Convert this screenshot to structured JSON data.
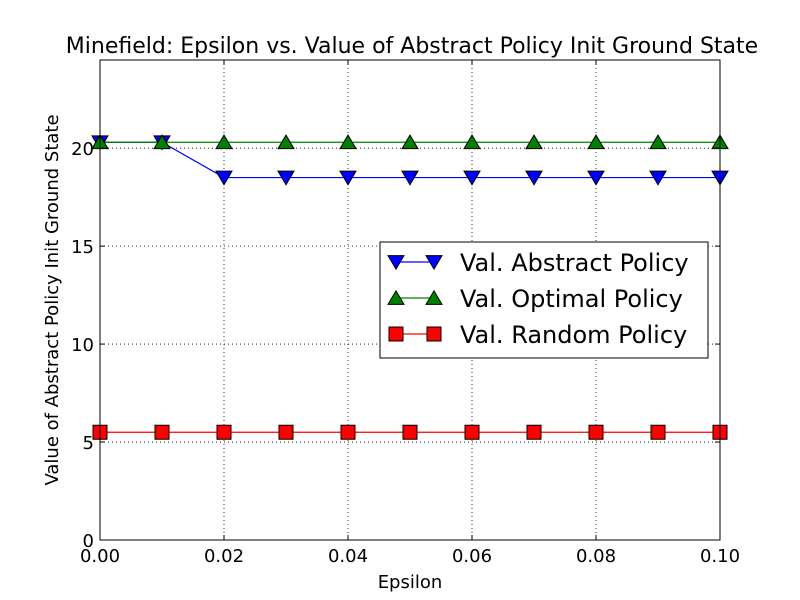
{
  "chart_data": {
    "type": "line",
    "title": "Minefield: Epsilon vs. Value of Abstract Policy Init Ground State",
    "xlabel": "Epsilon",
    "ylabel": "Value of Abstract Policy Init Ground State",
    "xlim": [
      0.0,
      0.1
    ],
    "ylim": [
      0,
      24.5
    ],
    "xticks": [
      0.0,
      0.02,
      0.04,
      0.06,
      0.08,
      0.1
    ],
    "xtick_labels": [
      "0.00",
      "0.02",
      "0.04",
      "0.06",
      "0.08",
      "0.10"
    ],
    "yticks": [
      0,
      5,
      10,
      15,
      20
    ],
    "ytick_labels": [
      "0",
      "5",
      "10",
      "15",
      "20"
    ],
    "grid": true,
    "legend_position": "center-right",
    "x": [
      0.0,
      0.01,
      0.02,
      0.03,
      0.04,
      0.05,
      0.06,
      0.07,
      0.08,
      0.09,
      0.1
    ],
    "series": [
      {
        "name": "Val. Abstract Policy",
        "color": "#0000ff",
        "marker": "triangle-down",
        "values": [
          20.3,
          20.3,
          18.5,
          18.5,
          18.5,
          18.5,
          18.5,
          18.5,
          18.5,
          18.5,
          18.5
        ]
      },
      {
        "name": "Val. Optimal Policy",
        "color": "#008000",
        "marker": "triangle-up",
        "values": [
          20.3,
          20.3,
          20.3,
          20.3,
          20.3,
          20.3,
          20.3,
          20.3,
          20.3,
          20.3,
          20.3
        ]
      },
      {
        "name": "Val. Random Policy",
        "color": "#ff0000",
        "marker": "square",
        "values": [
          5.5,
          5.5,
          5.5,
          5.5,
          5.5,
          5.5,
          5.5,
          5.5,
          5.5,
          5.5,
          5.5
        ]
      }
    ]
  }
}
